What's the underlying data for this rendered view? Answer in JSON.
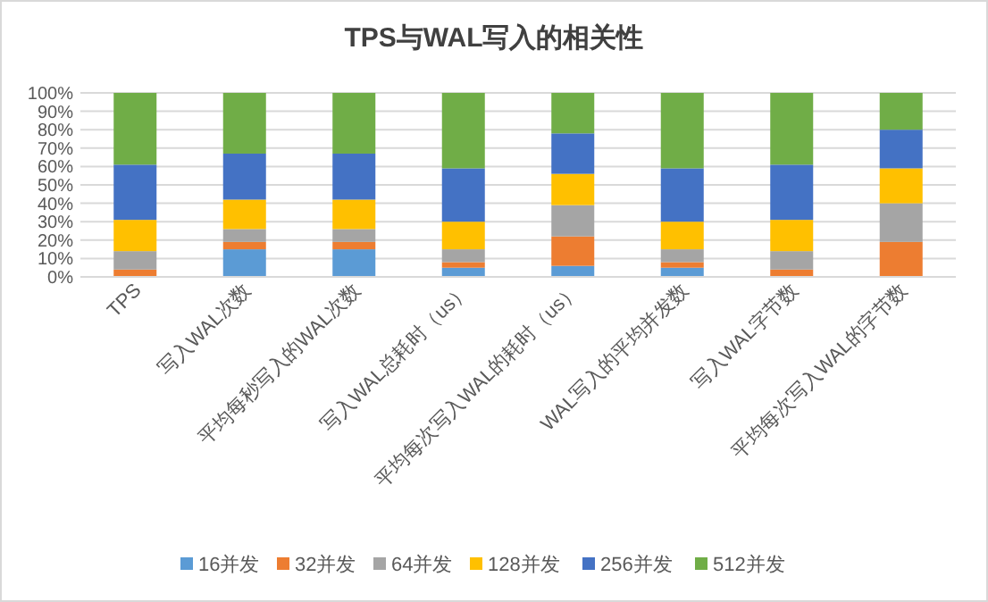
{
  "chart_data": {
    "type": "bar",
    "title": "TPS与WAL写入的相关性",
    "stacked": true,
    "grid": "y",
    "legend": "bottom",
    "categories": [
      "TPS",
      "写入WAL次数",
      "平均每秒写入的WAL次数",
      "写入WAL总耗时（us）",
      "平均每次写入WAL的耗时（us）",
      "WAL写入的平均并发数",
      "写入WAL字节数",
      "平均每次写入WAL的字节数"
    ],
    "ylim": [
      0,
      100
    ],
    "yticks": [
      {
        "value": 0,
        "label": "0%"
      },
      {
        "value": 10,
        "label": "10%"
      },
      {
        "value": 20,
        "label": "20%"
      },
      {
        "value": 30,
        "label": "30%"
      },
      {
        "value": 40,
        "label": "40%"
      },
      {
        "value": 50,
        "label": "50%"
      },
      {
        "value": 60,
        "label": "60%"
      },
      {
        "value": 70,
        "label": "70%"
      },
      {
        "value": 80,
        "label": "80%"
      },
      {
        "value": 90,
        "label": "90%"
      },
      {
        "value": 100,
        "label": "100%"
      }
    ],
    "series": [
      {
        "name": "16并发",
        "color": "#5b9bd5",
        "values": [
          0,
          15,
          15,
          5,
          6,
          5,
          0,
          0
        ]
      },
      {
        "name": "32并发",
        "color": "#ed7d31",
        "values": [
          4,
          4,
          4,
          3,
          16,
          3,
          4,
          19
        ]
      },
      {
        "name": "64并发",
        "color": "#a5a5a5",
        "values": [
          10,
          7,
          7,
          7,
          17,
          7,
          10,
          21
        ]
      },
      {
        "name": "128并发",
        "color": "#ffc000",
        "values": [
          17,
          16,
          16,
          15,
          17,
          15,
          17,
          19
        ]
      },
      {
        "name": "256并发",
        "color": "#4472c4",
        "values": [
          30,
          25,
          25,
          29,
          22,
          29,
          30,
          21
        ]
      },
      {
        "name": "512并发",
        "color": "#70ad47",
        "values": [
          39,
          33,
          33,
          41,
          22,
          41,
          39,
          20
        ]
      }
    ]
  }
}
